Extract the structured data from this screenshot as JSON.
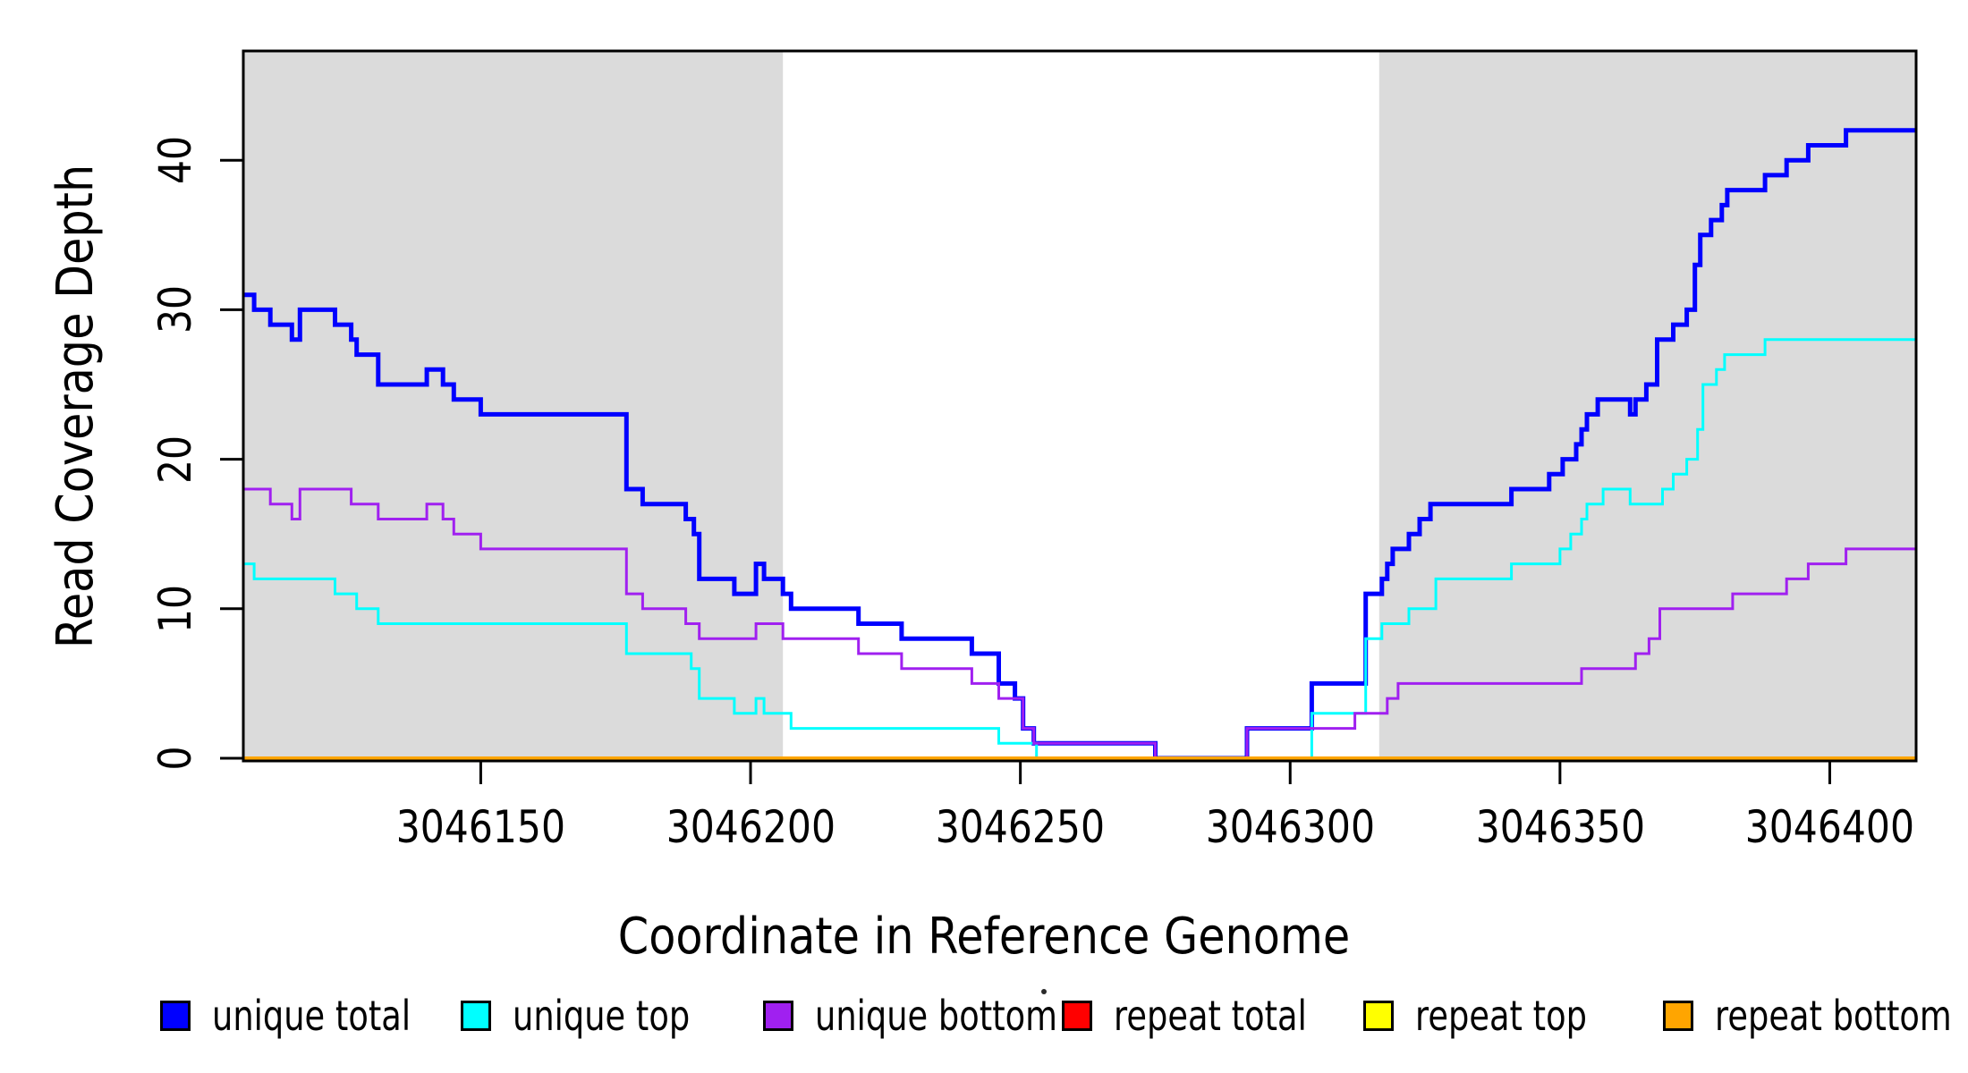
{
  "chart_data": {
    "type": "line",
    "step": true,
    "title": "",
    "xlabel": "Coordinate in Reference Genome",
    "ylabel": "Read Coverage Depth",
    "xlim": [
      3046106,
      3046416
    ],
    "ylim": [
      0,
      47.3
    ],
    "x_ticks": [
      "3046150",
      "3046200",
      "3046250",
      "3046300",
      "3046350",
      "3046400"
    ],
    "x_tick_values": [
      3046150,
      3046200,
      3046250,
      3046300,
      3046350,
      3046400
    ],
    "y_ticks": [
      "0",
      "10",
      "20",
      "30",
      "40"
    ],
    "y_tick_values": [
      0,
      10,
      20,
      30,
      40
    ],
    "grid": false,
    "legend_position": "bottom",
    "shaded_regions": [
      {
        "x0": 3046106,
        "x1": 3046206
      },
      {
        "x0": 3046316.5,
        "x1": 3046416
      }
    ],
    "series": [
      {
        "name": "unique total",
        "color": "#0000FF",
        "line_width": 5,
        "points": [
          [
            3046106,
            31
          ],
          [
            3046108,
            30
          ],
          [
            3046111,
            29
          ],
          [
            3046115,
            28
          ],
          [
            3046116.5,
            30
          ],
          [
            3046123,
            29
          ],
          [
            3046126,
            28
          ],
          [
            3046127,
            27
          ],
          [
            3046131,
            25
          ],
          [
            3046140,
            26
          ],
          [
            3046143,
            25
          ],
          [
            3046145,
            24
          ],
          [
            3046150,
            23
          ],
          [
            3046177,
            18
          ],
          [
            3046180,
            17
          ],
          [
            3046188,
            16
          ],
          [
            3046189.5,
            15
          ],
          [
            3046190.5,
            12
          ],
          [
            3046197,
            11
          ],
          [
            3046201,
            13
          ],
          [
            3046202.5,
            12
          ],
          [
            3046206,
            11
          ],
          [
            3046207.5,
            10
          ],
          [
            3046220,
            9
          ],
          [
            3046228,
            8
          ],
          [
            3046241,
            7
          ],
          [
            3046246,
            5
          ],
          [
            3046249,
            4
          ],
          [
            3046250.5,
            2
          ],
          [
            3046252.5,
            1
          ],
          [
            3046275,
            0
          ],
          [
            3046292,
            2
          ],
          [
            3046304,
            5
          ],
          [
            3046314,
            11
          ],
          [
            3046317,
            12
          ],
          [
            3046318,
            13
          ],
          [
            3046319,
            14
          ],
          [
            3046322,
            15
          ],
          [
            3046324,
            16
          ],
          [
            3046326,
            17
          ],
          [
            3046341,
            18
          ],
          [
            3046348,
            19
          ],
          [
            3046350.5,
            20
          ],
          [
            3046353,
            21
          ],
          [
            3046354,
            22
          ],
          [
            3046355,
            23
          ],
          [
            3046357,
            24
          ],
          [
            3046363,
            23
          ],
          [
            3046364,
            24
          ],
          [
            3046366,
            25
          ],
          [
            3046368,
            28
          ],
          [
            3046371,
            29
          ],
          [
            3046373.5,
            30
          ],
          [
            3046375,
            33
          ],
          [
            3046376,
            35
          ],
          [
            3046378,
            36
          ],
          [
            3046380,
            37
          ],
          [
            3046381,
            38
          ],
          [
            3046388,
            39
          ],
          [
            3046392,
            40
          ],
          [
            3046396,
            41
          ],
          [
            3046403,
            42
          ]
        ]
      },
      {
        "name": "unique top",
        "color": "#00FFFF",
        "line_width": 3,
        "points": [
          [
            3046106,
            13
          ],
          [
            3046108,
            12
          ],
          [
            3046123,
            11
          ],
          [
            3046127,
            10
          ],
          [
            3046131,
            9
          ],
          [
            3046177,
            7
          ],
          [
            3046189,
            6
          ],
          [
            3046190.5,
            4
          ],
          [
            3046197,
            3
          ],
          [
            3046201,
            4
          ],
          [
            3046202.5,
            3
          ],
          [
            3046207.5,
            2
          ],
          [
            3046246,
            1
          ],
          [
            3046253,
            0
          ],
          [
            3046304,
            3
          ],
          [
            3046314,
            8
          ],
          [
            3046317,
            9
          ],
          [
            3046322,
            10
          ],
          [
            3046327,
            12
          ],
          [
            3046341,
            13
          ],
          [
            3046350,
            14
          ],
          [
            3046352,
            15
          ],
          [
            3046354,
            16
          ],
          [
            3046355,
            17
          ],
          [
            3046358,
            18
          ],
          [
            3046363,
            17
          ],
          [
            3046369,
            18
          ],
          [
            3046371,
            19
          ],
          [
            3046373.5,
            20
          ],
          [
            3046375.5,
            22
          ],
          [
            3046376.5,
            25
          ],
          [
            3046379,
            26
          ],
          [
            3046380.5,
            27
          ],
          [
            3046388,
            28
          ]
        ]
      },
      {
        "name": "unique bottom",
        "color": "#A020F0",
        "line_width": 3,
        "points": [
          [
            3046106,
            18
          ],
          [
            3046111,
            17
          ],
          [
            3046115,
            16
          ],
          [
            3046116.5,
            18
          ],
          [
            3046126,
            17
          ],
          [
            3046131,
            16
          ],
          [
            3046140,
            17
          ],
          [
            3046143,
            16
          ],
          [
            3046145,
            15
          ],
          [
            3046150,
            14
          ],
          [
            3046177,
            11
          ],
          [
            3046180,
            10
          ],
          [
            3046188,
            9
          ],
          [
            3046190.5,
            8
          ],
          [
            3046201,
            9
          ],
          [
            3046206,
            8
          ],
          [
            3046220,
            7
          ],
          [
            3046228,
            6
          ],
          [
            3046241,
            5
          ],
          [
            3046246,
            4
          ],
          [
            3046250.5,
            2
          ],
          [
            3046252.5,
            1
          ],
          [
            3046275,
            0
          ],
          [
            3046292,
            2
          ],
          [
            3046312,
            3
          ],
          [
            3046318,
            4
          ],
          [
            3046320,
            5
          ],
          [
            3046354,
            6
          ],
          [
            3046364,
            7
          ],
          [
            3046366.5,
            8
          ],
          [
            3046368.5,
            10
          ],
          [
            3046382,
            11
          ],
          [
            3046392,
            12
          ],
          [
            3046396,
            13
          ],
          [
            3046403,
            14
          ]
        ]
      },
      {
        "name": "repeat total",
        "color": "#FF0000",
        "line_width": 3,
        "points": [
          [
            3046106,
            0
          ]
        ]
      },
      {
        "name": "repeat top",
        "color": "#FFFF00",
        "line_width": 3,
        "points": [
          [
            3046106,
            0
          ]
        ]
      },
      {
        "name": "repeat bottom",
        "color": "#FFA500",
        "line_width": 4,
        "points": [
          [
            3046106,
            0
          ]
        ]
      }
    ]
  },
  "legend": {
    "items": [
      {
        "label": "unique total",
        "color": "#0000FF"
      },
      {
        "label": "unique top",
        "color": "#00FFFF"
      },
      {
        "label": "unique bottom",
        "color": "#A020F0"
      },
      {
        "label": "repeat total",
        "color": "#FF0000"
      },
      {
        "label": "repeat top",
        "color": "#FFFF00"
      },
      {
        "label": "repeat bottom",
        "color": "#FFA500"
      }
    ]
  },
  "annotations": {
    "stray_mark": "."
  },
  "colors": {
    "background": "#FFFFFF",
    "shading": "#DBDBDB",
    "axis": "#000000"
  }
}
